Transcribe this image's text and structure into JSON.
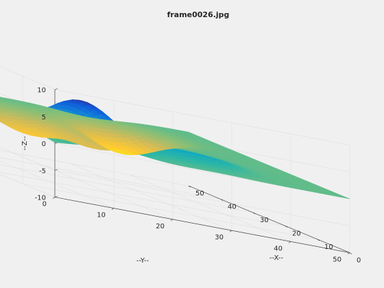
{
  "chart_data": {
    "type": "surface",
    "title": "frame0026.jpg",
    "xlabel": "--X--",
    "ylabel": "--Y--",
    "zlabel": "--Z--",
    "xlim": [
      0,
      50
    ],
    "ylim": [
      0,
      50
    ],
    "zlim": [
      -10,
      10
    ],
    "x_ticks": [
      0,
      10,
      20,
      30,
      40,
      50
    ],
    "y_ticks": [
      0,
      10,
      20,
      30,
      40,
      50
    ],
    "z_ticks": [
      -10,
      -5,
      0,
      5,
      10
    ],
    "grid": true,
    "colormap": "parula",
    "baseline_z": 0,
    "features": [
      {
        "x": 10,
        "y": 10,
        "z": 7.5
      },
      {
        "x": 13,
        "y": 27,
        "z": 5
      },
      {
        "x": 24,
        "y": 21,
        "z": -3
      },
      {
        "x": 36,
        "y": 15,
        "z": -4
      },
      {
        "x": 40,
        "y": 33,
        "z": -5
      }
    ]
  },
  "colors": {
    "background": "#f0f0f0",
    "axes_line": "#262626",
    "grid": "#dfdfdf",
    "surface_flat": "#14b7c7",
    "colormap_stops": [
      "#352a87",
      "#0f5cdd",
      "#1481d6",
      "#06a4ca",
      "#2eb7a4",
      "#87bf77",
      "#d1bb59",
      "#fec832",
      "#f9fb0e"
    ]
  }
}
